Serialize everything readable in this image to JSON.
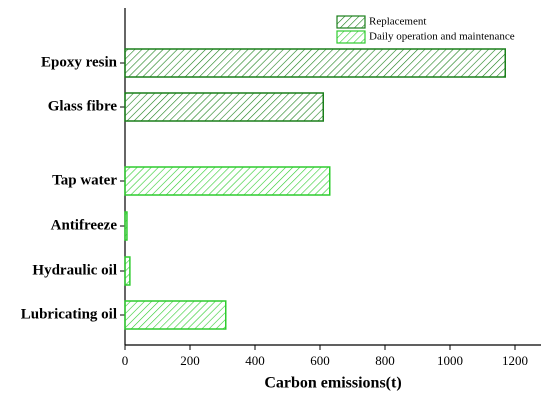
{
  "chart_data": {
    "type": "barh",
    "categories": [
      "Epoxy resin",
      "Glass fibre",
      "Tap water",
      "Antifreeze",
      "Hydraulic oil",
      "Lubricating oil"
    ],
    "series": [
      {
        "name": "Replacement",
        "color": "#1a7f1a",
        "values": [
          1170,
          610,
          null,
          null,
          null,
          null
        ]
      },
      {
        "name": "Daily operation and maintenance",
        "color": "#2ecc2e",
        "values": [
          null,
          null,
          630,
          6,
          15,
          310
        ]
      }
    ],
    "xlabel": "Carbon emissions(t)",
    "xlim": [
      0,
      1280
    ],
    "xticks": [
      0,
      200,
      400,
      600,
      800,
      1000,
      1200
    ],
    "legend": "upper right"
  }
}
